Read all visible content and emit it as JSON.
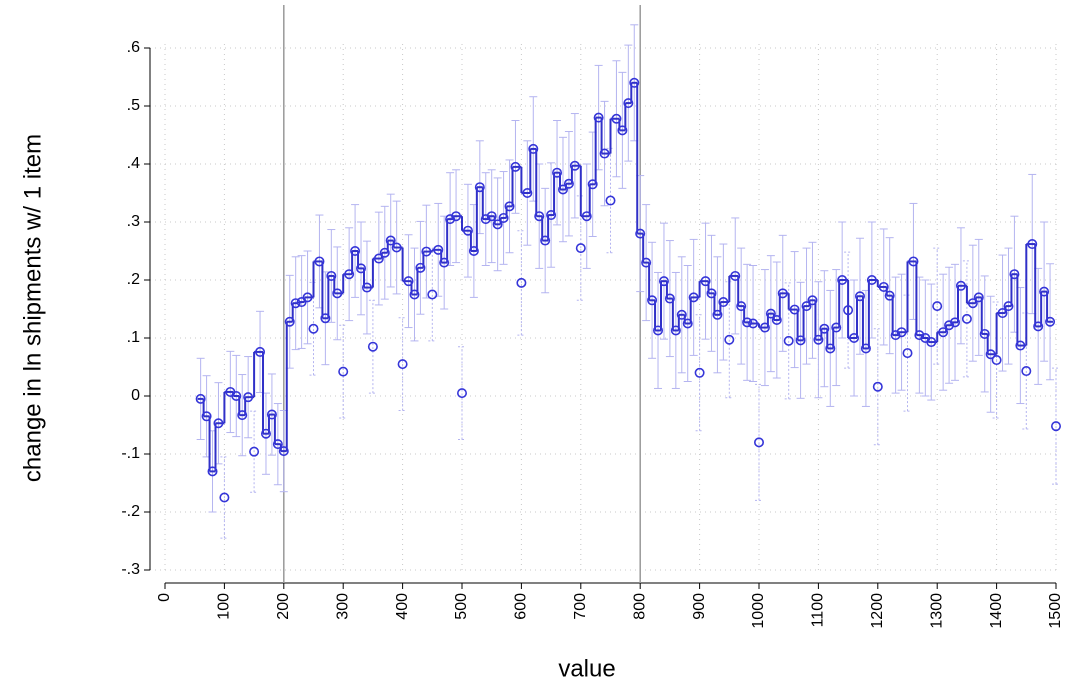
{
  "chart_data": {
    "type": "scatter-step",
    "x_label": "value",
    "y_label": "change in ln shipments w/ 1 item",
    "x": [
      60,
      70,
      80,
      90,
      100,
      110,
      120,
      130,
      140,
      150,
      160,
      170,
      180,
      190,
      200,
      210,
      220,
      230,
      240,
      250,
      260,
      270,
      280,
      290,
      300,
      310,
      320,
      330,
      340,
      350,
      360,
      370,
      380,
      390,
      400,
      410,
      420,
      430,
      440,
      450,
      460,
      470,
      480,
      490,
      500,
      510,
      520,
      530,
      540,
      550,
      560,
      570,
      580,
      590,
      600,
      610,
      620,
      630,
      640,
      650,
      660,
      670,
      680,
      690,
      700,
      710,
      720,
      730,
      740,
      750,
      760,
      770,
      780,
      790,
      800,
      810,
      820,
      830,
      840,
      850,
      860,
      870,
      880,
      890,
      900,
      910,
      920,
      930,
      940,
      950,
      960,
      970,
      980,
      990,
      1000,
      1010,
      1020,
      1030,
      1040,
      1050,
      1060,
      1070,
      1080,
      1090,
      1100,
      1110,
      1120,
      1130,
      1140,
      1150,
      1160,
      1170,
      1180,
      1190,
      1200,
      1210,
      1220,
      1230,
      1240,
      1250,
      1260,
      1270,
      1280,
      1290,
      1300,
      1310,
      1320,
      1330,
      1340,
      1350,
      1360,
      1370,
      1380,
      1390,
      1400,
      1410,
      1420,
      1430,
      1440,
      1450,
      1460,
      1470,
      1480,
      1490,
      1500
    ],
    "series": [
      {
        "color": "#3535d8",
        "error_color": "#b4b4f0",
        "values": [
          -0.005,
          -0.035,
          -0.13,
          -0.047,
          -0.175,
          0.007,
          0,
          -0.033,
          -0.002,
          -0.096,
          0.076,
          -0.065,
          -0.032,
          -0.083,
          -0.095,
          0.128,
          0.16,
          0.162,
          0.17,
          0.116,
          0.232,
          0.134,
          0.207,
          0.177,
          0.042,
          0.21,
          0.25,
          0.22,
          0.187,
          0.085,
          0.237,
          0.247,
          0.268,
          0.256,
          0.055,
          0.198,
          0.175,
          0.221,
          0.249,
          0.175,
          0.252,
          0.23,
          0.305,
          0.31,
          0.005,
          0.285,
          0.25,
          0.36,
          0.305,
          0.31,
          0.296,
          0.307,
          0.327,
          0.395,
          0.195,
          0.35,
          0.426,
          0.31,
          0.268,
          0.312,
          0.385,
          0.356,
          0.366,
          0.397,
          0.255,
          0.31,
          0.365,
          0.48,
          0.418,
          0.337,
          0.478,
          0.458,
          0.505,
          0.54,
          0.28,
          0.23,
          0.165,
          0.113,
          0.198,
          0.168,
          0.113,
          0.14,
          0.125,
          0.17,
          0.04,
          0.198,
          0.177,
          0.14,
          0.162,
          0.097,
          0.207,
          0.155,
          0.127,
          0.125,
          -0.08,
          0.118,
          0.142,
          0.131,
          0.177,
          0.095,
          0.149,
          0.096,
          0.155,
          0.165,
          0.097,
          0.116,
          0.082,
          0.118,
          0.2,
          0.148,
          0.1,
          0.172,
          0.082,
          0.2,
          0.016,
          0.188,
          0.173,
          0.105,
          0.11,
          0.074,
          0.232,
          0.105,
          0.1,
          0.093,
          0.155,
          0.11,
          0.122,
          0.127,
          0.19,
          0.133,
          0.16,
          0.17,
          0.107,
          0.072,
          0.062,
          0.143,
          0.155,
          0.21,
          0.087,
          0.043,
          0.262,
          0.12,
          0.18,
          0.128,
          -0.052
        ],
        "errors": [
          0.07,
          0.07,
          0.07,
          0.07,
          0.07,
          0.07,
          0.07,
          0.07,
          0.07,
          0.07,
          0.07,
          0.07,
          0.07,
          0.07,
          0.07,
          0.08,
          0.08,
          0.08,
          0.08,
          0.08,
          0.08,
          0.08,
          0.08,
          0.08,
          0.08,
          0.08,
          0.08,
          0.08,
          0.08,
          0.08,
          0.08,
          0.08,
          0.08,
          0.08,
          0.08,
          0.08,
          0.08,
          0.08,
          0.08,
          0.08,
          0.08,
          0.08,
          0.08,
          0.08,
          0.08,
          0.08,
          0.08,
          0.08,
          0.08,
          0.08,
          0.08,
          0.08,
          0.08,
          0.08,
          0.09,
          0.09,
          0.09,
          0.09,
          0.09,
          0.09,
          0.09,
          0.09,
          0.09,
          0.09,
          0.09,
          0.09,
          0.09,
          0.09,
          0.09,
          0.09,
          0.1,
          0.1,
          0.1,
          0.1,
          0.1,
          0.1,
          0.1,
          0.1,
          0.1,
          0.1,
          0.1,
          0.1,
          0.1,
          0.1,
          0.1,
          0.1,
          0.1,
          0.1,
          0.1,
          0.1,
          0.1,
          0.1,
          0.1,
          0.1,
          0.1,
          0.1,
          0.1,
          0.1,
          0.1,
          0.1,
          0.1,
          0.1,
          0.1,
          0.1,
          0.1,
          0.1,
          0.1,
          0.1,
          0.1,
          0.1,
          0.1,
          0.1,
          0.1,
          0.1,
          0.1,
          0.1,
          0.1,
          0.1,
          0.1,
          0.1,
          0.1,
          0.1,
          0.1,
          0.1,
          0.1,
          0.1,
          0.1,
          0.1,
          0.1,
          0.1,
          0.1,
          0.1,
          0.1,
          0.1,
          0.1,
          0.1,
          0.1,
          0.1,
          0.1,
          0.1,
          0.12,
          0.1,
          0.12,
          0.1,
          0.1
        ]
      },
      {
        "color": "#3030c8",
        "values": [
          -0.005,
          -0.035,
          -0.13,
          -0.047,
          null,
          0.007,
          0,
          -0.033,
          -0.002,
          null,
          0.076,
          -0.065,
          -0.032,
          -0.083,
          -0.095,
          0.128,
          0.16,
          0.162,
          0.17,
          null,
          0.232,
          0.134,
          0.207,
          0.177,
          null,
          0.21,
          0.25,
          0.22,
          0.187,
          null,
          0.237,
          0.247,
          0.268,
          0.256,
          null,
          0.198,
          0.175,
          0.221,
          0.249,
          null,
          0.252,
          0.23,
          0.305,
          0.31,
          null,
          0.285,
          0.25,
          0.36,
          0.305,
          0.31,
          0.296,
          0.307,
          0.327,
          0.395,
          null,
          0.35,
          0.426,
          0.31,
          0.268,
          0.312,
          0.385,
          0.356,
          0.366,
          0.397,
          null,
          0.31,
          0.365,
          0.48,
          0.418,
          null,
          0.478,
          0.458,
          0.505,
          0.54,
          0.28,
          0.23,
          0.165,
          0.113,
          0.198,
          0.168,
          0.113,
          0.14,
          0.125,
          0.17,
          null,
          0.198,
          0.177,
          0.14,
          0.162,
          null,
          0.207,
          0.155,
          0.127,
          0.125,
          null,
          0.118,
          0.142,
          0.131,
          0.177,
          null,
          0.149,
          0.096,
          0.155,
          0.165,
          0.097,
          0.116,
          0.082,
          0.118,
          0.2,
          null,
          0.1,
          0.172,
          0.082,
          0.2,
          null,
          0.188,
          0.173,
          0.105,
          0.11,
          null,
          0.232,
          0.105,
          0.1,
          0.093,
          null,
          0.11,
          0.122,
          0.127,
          0.19,
          null,
          0.16,
          0.17,
          0.107,
          0.072,
          null,
          0.143,
          0.155,
          0.21,
          0.087,
          null,
          0.262,
          0.12,
          0.18,
          0.128,
          null
        ]
      }
    ],
    "xlim": [
      0,
      1500
    ],
    "xticks": [
      0,
      100,
      200,
      300,
      400,
      500,
      600,
      700,
      800,
      900,
      1000,
      1100,
      1200,
      1300,
      1400,
      1500
    ],
    "ylim": [
      -0.3,
      0.6
    ],
    "yticks": [
      {
        "value": -0.3,
        "label": "-.3"
      },
      {
        "value": -0.2,
        "label": "-.2"
      },
      {
        "value": -0.1,
        "label": "-.1"
      },
      0,
      {
        "value": 0.1,
        "label": ".1"
      },
      {
        "value": 0.2,
        "label": ".2"
      },
      {
        "value": 0.3,
        "label": ".3"
      },
      {
        "value": 0.4,
        "label": ".4"
      },
      {
        "value": 0.5,
        "label": ".5"
      },
      {
        "value": 0.6,
        "label": ".6"
      }
    ],
    "vlines": [
      200,
      800
    ],
    "grid": true
  }
}
